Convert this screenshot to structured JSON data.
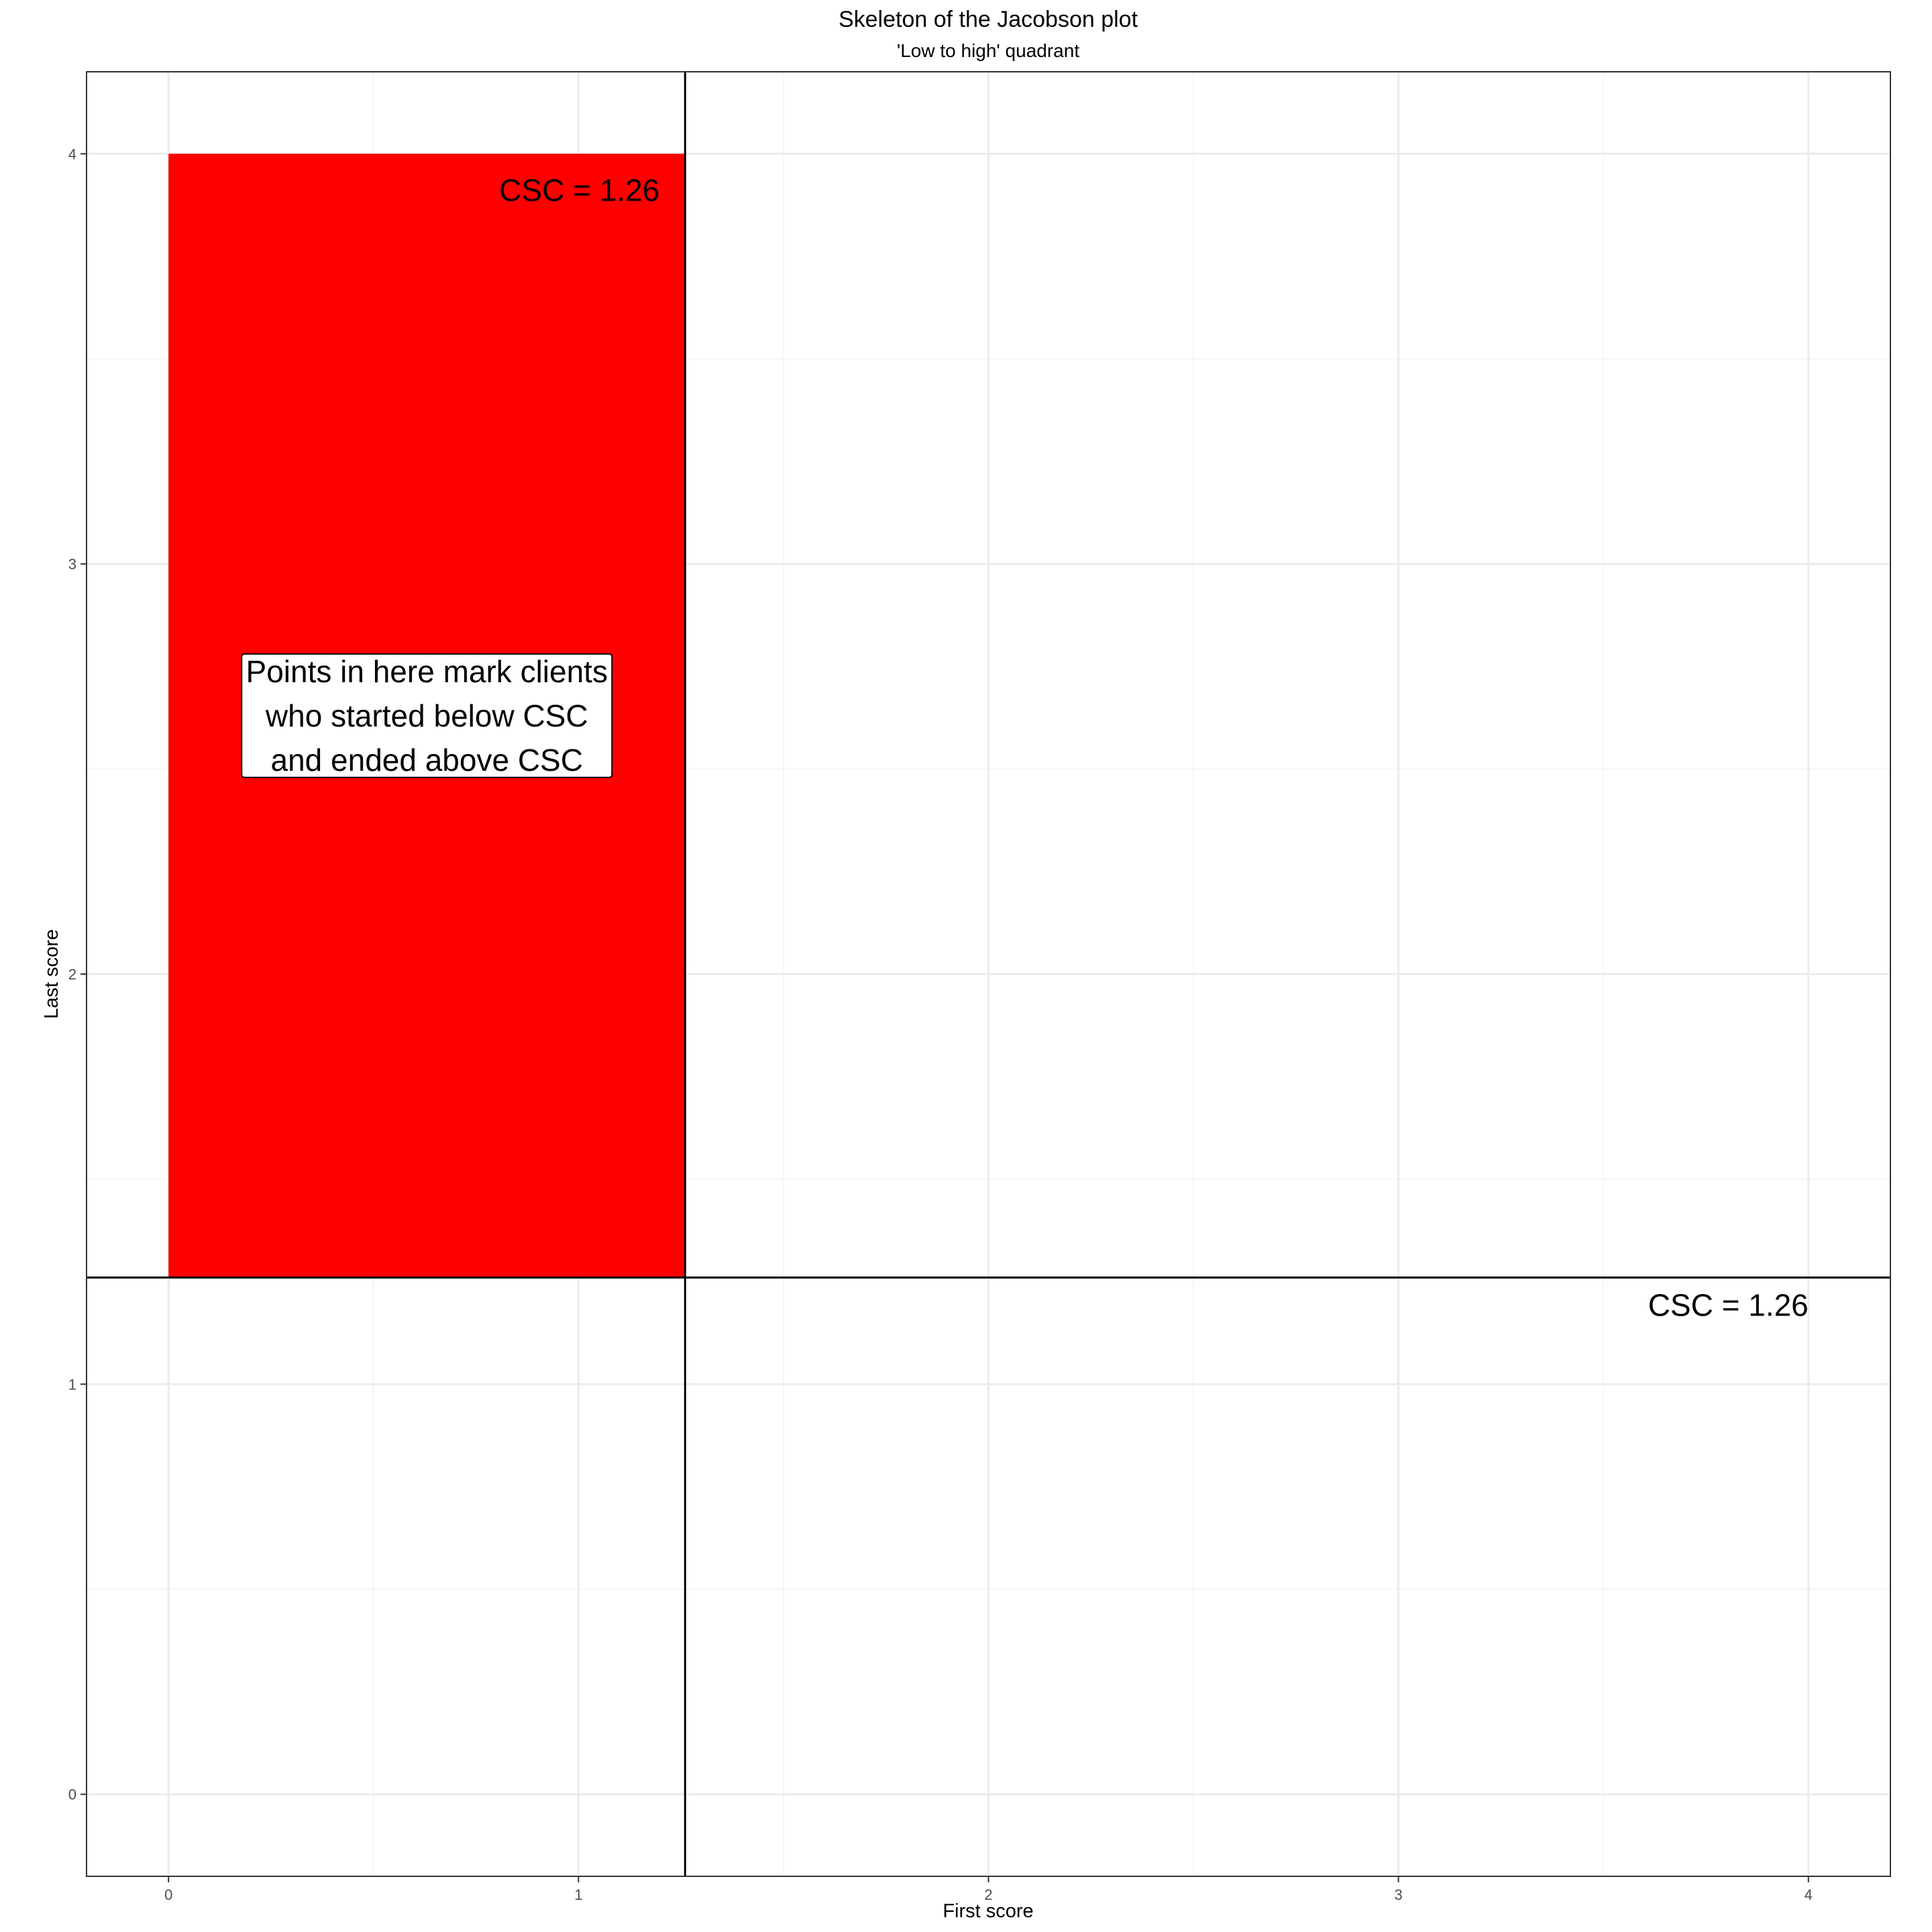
{
  "chart_data": {
    "type": "scatter",
    "title": "Skeleton of the Jacobson plot",
    "subtitle": "'Low to high' quadrant",
    "xlabel": "First score",
    "ylabel": "Last score",
    "xlim": [
      -0.2,
      4.2
    ],
    "ylim": [
      -0.2,
      4.2
    ],
    "x_ticks": [
      0,
      1,
      2,
      3,
      4
    ],
    "y_ticks": [
      0,
      1,
      2,
      3,
      4
    ],
    "x_tick_labels": [
      "0",
      "1",
      "2",
      "3",
      "4"
    ],
    "y_tick_labels": [
      "0",
      "1",
      "2",
      "3",
      "4"
    ],
    "grid": true,
    "csc": 1.26,
    "highlight_region": {
      "x": [
        0,
        1.26
      ],
      "y": [
        1.26,
        4
      ],
      "color": "#ff0000"
    },
    "annotations": [
      {
        "text": "CSC = 1.26",
        "x": 1.26,
        "y": 4,
        "anchor": "end"
      },
      {
        "text": "CSC = 1.26",
        "x": 4,
        "y": 1.26,
        "anchor": "end"
      }
    ],
    "label_box": {
      "lines": [
        "Points in here mark clients",
        "who started below CSC",
        "and ended above CSC"
      ],
      "x": 0.63,
      "y": 2.63
    },
    "colors": {
      "highlight": "#ff0000",
      "line": "#000000",
      "grid_major": "#ebebeb",
      "grid_minor": "#f5f5f5"
    }
  }
}
